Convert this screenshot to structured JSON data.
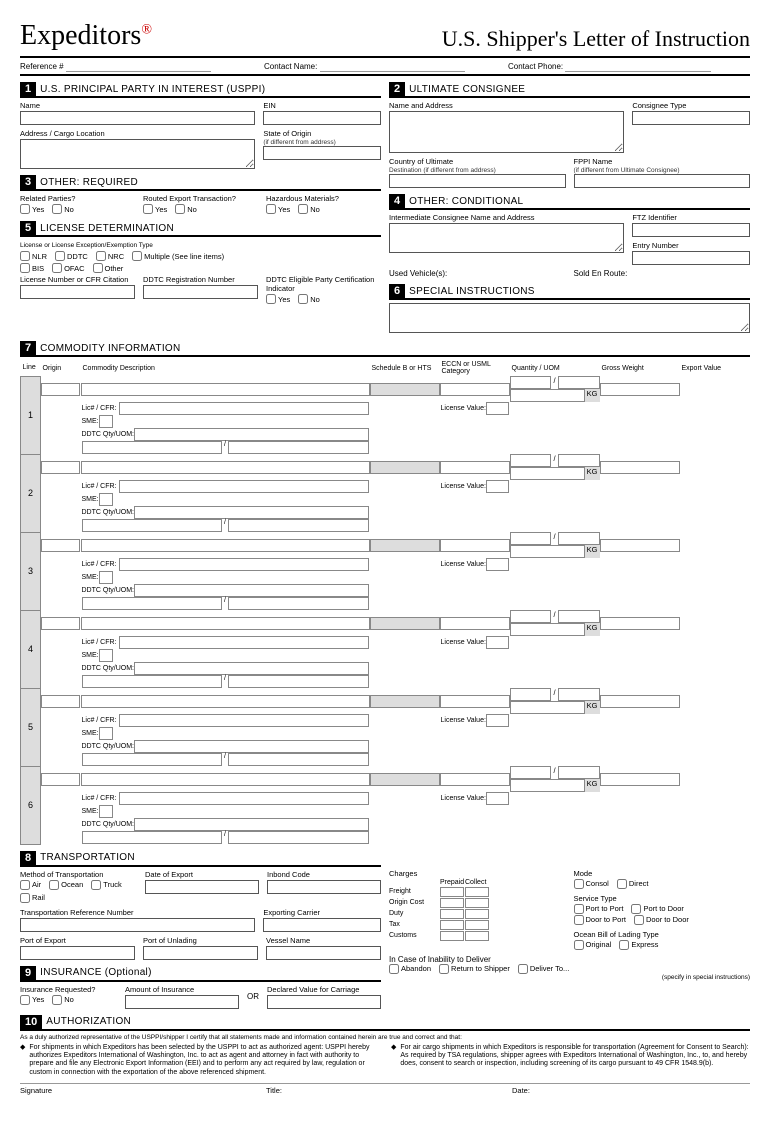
{
  "logo": "Expeditors",
  "title": "U.S. Shipper's Letter of Instruction",
  "ref": {
    "reference": "Reference #",
    "contact_name": "Contact Name:",
    "contact_phone": "Contact Phone:"
  },
  "s1": {
    "num": "1",
    "title": "U.S. PRINCIPAL PARTY IN INTEREST (USPPI)",
    "name": "Name",
    "ein": "EIN",
    "addr": "Address / Cargo Location",
    "state": "State of Origin",
    "state_sub": "(if different from address)"
  },
  "s2": {
    "num": "2",
    "title": "ULTIMATE CONSIGNEE",
    "name": "Name and Address",
    "type": "Consignee Type",
    "country": "Country of Ultimate",
    "country_sub": "Destination (if different from address)",
    "fppi": "FPPI Name",
    "fppi_sub": "(if different from Ultimate Consignee)"
  },
  "s3": {
    "num": "3",
    "title": "OTHER: REQUIRED",
    "related": "Related Parties?",
    "routed": "Routed Export Transaction?",
    "haz": "Hazardous Materials?",
    "yes": "Yes",
    "no": "No"
  },
  "s4": {
    "num": "4",
    "title": "OTHER: CONDITIONAL",
    "inter": "Intermediate Consignee Name and Address",
    "ftz": "FTZ Identifier",
    "entry": "Entry Number",
    "used": "Used Vehicle(s):",
    "sold": "Sold En Route:"
  },
  "s5": {
    "num": "5",
    "title": "LICENSE DETERMINATION",
    "exc": "License or License Exception/Exemption Type",
    "nlr": "NLR",
    "ddtc": "DDTC",
    "nrc": "NRC",
    "mult": "Multiple (See line items)",
    "bis": "BIS",
    "ofac": "OFAC",
    "other": "Other",
    "licnum": "License Number or CFR Citation",
    "ddtcreg": "DDTC Registration Number",
    "ddtcel": "DDTC Eligible Party Certification Indicator"
  },
  "s6": {
    "num": "6",
    "title": "SPECIAL INSTRUCTIONS"
  },
  "s7": {
    "num": "7",
    "title": "COMMODITY INFORMATION",
    "cols": {
      "line": "Line",
      "origin": "Origin",
      "desc": "Commodity Description",
      "sched": "Schedule B or HTS",
      "eccn": "ECCN or USML Category",
      "qty": "Quantity / UOM",
      "gw": "Gross Weight",
      "ev": "Export Value"
    },
    "lic": "Lic# / CFR:",
    "sme": "SME:",
    "ddtcq": "DDTC Qty/UOM:",
    "kg": "KG",
    "licval": "License Value:",
    "rows": [
      "1",
      "2",
      "3",
      "4",
      "5",
      "6"
    ]
  },
  "s8": {
    "num": "8",
    "title": "TRANSPORTATION",
    "method": "Method of Transportation",
    "air": "Air",
    "ocean": "Ocean",
    "truck": "Truck",
    "rail": "Rail",
    "doe": "Date of Export",
    "inbond": "Inbond Code",
    "trn": "Transportation Reference Number",
    "carrier": "Exporting Carrier",
    "poe": "Port of Export",
    "pou": "Port of Unlading",
    "vessel": "Vessel Name",
    "charges": "Charges",
    "prepaid": "Prepaid",
    "collect": "Collect",
    "freight": "Freight",
    "origin": "Origin Cost",
    "duty": "Duty",
    "tax": "Tax",
    "customs": "Customs",
    "mode": "Mode",
    "consol": "Consol",
    "direct": "Direct",
    "stype": "Service Type",
    "p2p": "Port to Port",
    "p2d": "Port to Door",
    "d2p": "Door to Port",
    "d2d": "Door to Door",
    "obl": "Ocean Bill of Lading Type",
    "orig": "Original",
    "express": "Express",
    "inability": "In Case of Inability to Deliver",
    "abandon": "Abandon",
    "return": "Return to Shipper",
    "deliver": "Deliver To...",
    "deliver_sub": "(specify in special instructions)"
  },
  "s9": {
    "num": "9",
    "title": "INSURANCE (Optional)",
    "req": "Insurance Requested?",
    "amt": "Amount of Insurance",
    "or": "OR",
    "dv": "Declared Value for Carriage"
  },
  "s10": {
    "num": "10",
    "title": "AUTHORIZATION",
    "intro": "As a duly authorized representative of the USPPI/shipper I certify that all statements made and information contained herein are true and correct and that:",
    "b1": "For shipments in which Expeditors has been selected by the USPPI to act as authorized agent: USPPI hereby authorizes Expeditors International of Washington, Inc. to act as agent and attorney in fact with authority to prepare and file any Electronic Export Information (EEI) and to perform any act required by law, regulation or custom in connection with the exportation of the above referenced shipment.",
    "b2": "For air cargo shipments in which Expeditors is responsible for transportation (Agreement for Consent to Search): As required by TSA regulations, shipper agrees with Expeditors International of Washington, Inc., to, and hereby does, consent to search or inspection, including screening of its cargo pursuant to 49 CFR 1548.9(b).",
    "sig": "Signature",
    "title_f": "Title:",
    "date": "Date:"
  }
}
